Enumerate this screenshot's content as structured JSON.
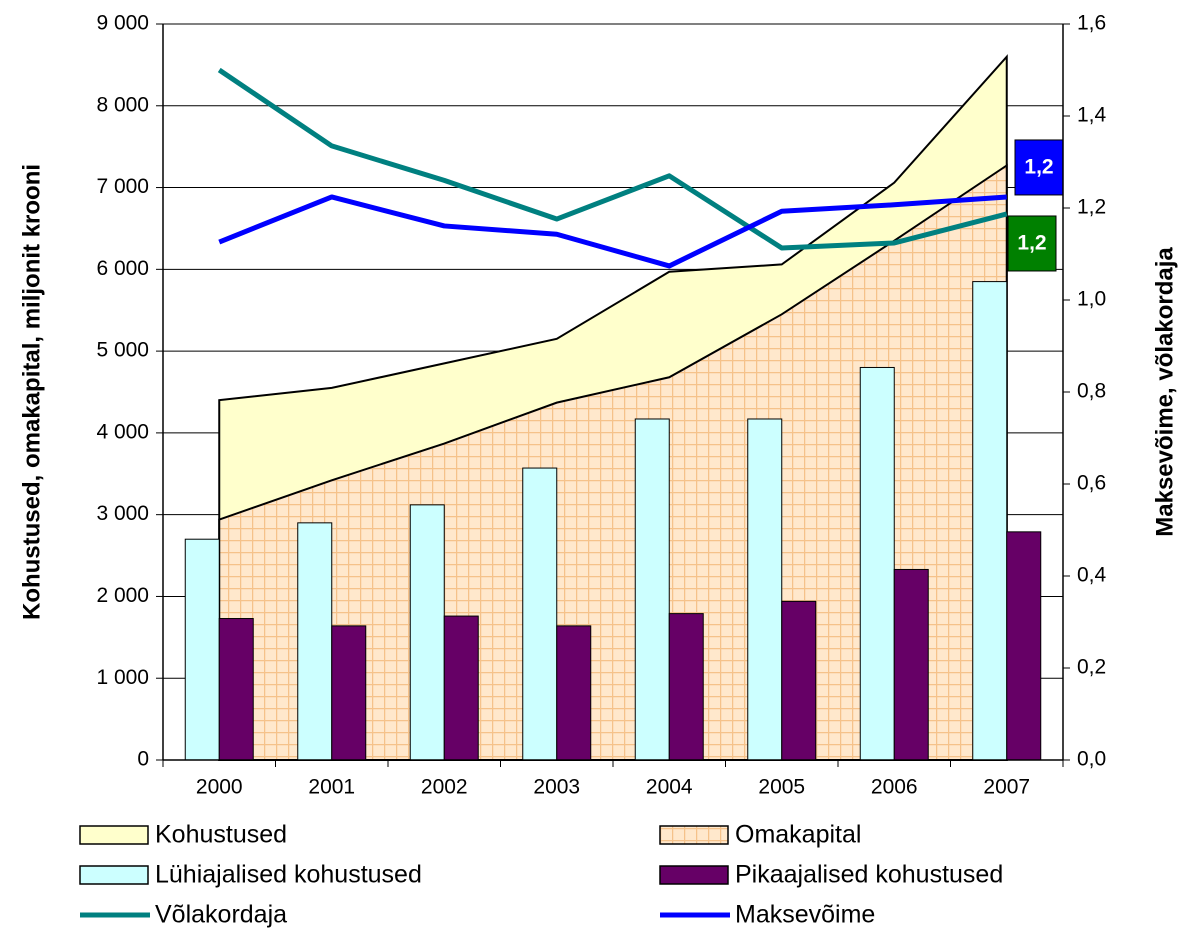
{
  "chart_data": {
    "type": "combo",
    "y_label": "Kohustused, omakapital, miljonit krooni",
    "y2_label": "Maksevõime, võlakordaja",
    "categories": [
      "2000",
      "2001",
      "2002",
      "2003",
      "2004",
      "2005",
      "2006",
      "2007"
    ],
    "ylim": [
      0,
      9000
    ],
    "yticks": [
      0,
      {
        "value": 1000,
        "label": "1 000"
      },
      {
        "value": 2000,
        "label": "2 000"
      },
      {
        "value": 3000,
        "label": "3 000"
      },
      {
        "value": 4000,
        "label": "4 000"
      },
      {
        "value": 5000,
        "label": "5 000"
      },
      {
        "value": 6000,
        "label": "6 000"
      },
      {
        "value": 7000,
        "label": "7 000"
      },
      {
        "value": 8000,
        "label": "8 000"
      },
      {
        "value": 9000,
        "label": "9 000"
      }
    ],
    "y2lim": [
      0,
      1.6
    ],
    "y2ticks": [
      {
        "value": 0,
        "label": "0,0"
      },
      {
        "value": 0.2,
        "label": "0,2"
      },
      {
        "value": 0.4,
        "label": "0,4"
      },
      {
        "value": 0.6,
        "label": "0,6"
      },
      {
        "value": 0.8,
        "label": "0,8"
      },
      {
        "value": 1.0,
        "label": "1,0"
      },
      {
        "value": 1.2,
        "label": "1,2"
      },
      {
        "value": 1.4,
        "label": "1,4"
      },
      {
        "value": 1.6,
        "label": "1,6"
      }
    ],
    "grid": true,
    "series": [
      {
        "name": "Kohustused",
        "type": "area",
        "color": "#ffffcc",
        "values": [
          4400,
          4550,
          4850,
          5150,
          5970,
          6060,
          7060,
          8600
        ]
      },
      {
        "name": "Omakapital",
        "type": "area",
        "color": "#ffe8cc",
        "hatch": "#f5c28a",
        "values": [
          2940,
          3420,
          3870,
          4370,
          4680,
          5450,
          6350,
          7270
        ]
      },
      {
        "name": "Lühiajalised kohustused",
        "type": "bar",
        "color": "#ccffff",
        "values": [
          2700,
          2900,
          3120,
          3570,
          4170,
          4170,
          4800,
          5850
        ]
      },
      {
        "name": "Pikaajalised kohustused",
        "type": "bar",
        "color": "#660066",
        "values": [
          1730,
          1640,
          1760,
          1640,
          1790,
          1940,
          2330,
          2790
        ]
      },
      {
        "name": "Võlakordaja",
        "type": "line",
        "axis": "y2",
        "color": "#008080",
        "label_color": "#008000",
        "values": [
          1.5,
          1.335,
          1.26,
          1.176,
          1.27,
          1.113,
          1.124,
          1.187
        ],
        "value_labels": [
          null,
          null,
          null,
          null,
          null,
          null,
          null,
          "1,2"
        ]
      },
      {
        "name": "Maksevõime",
        "type": "line",
        "axis": "y2",
        "color": "#0000ff",
        "label_color": "#0000ff",
        "values": [
          1.126,
          1.224,
          1.161,
          1.143,
          1.074,
          1.193,
          1.207,
          1.224
        ],
        "value_labels": [
          null,
          null,
          null,
          null,
          null,
          null,
          null,
          "1,2"
        ]
      }
    ]
  }
}
